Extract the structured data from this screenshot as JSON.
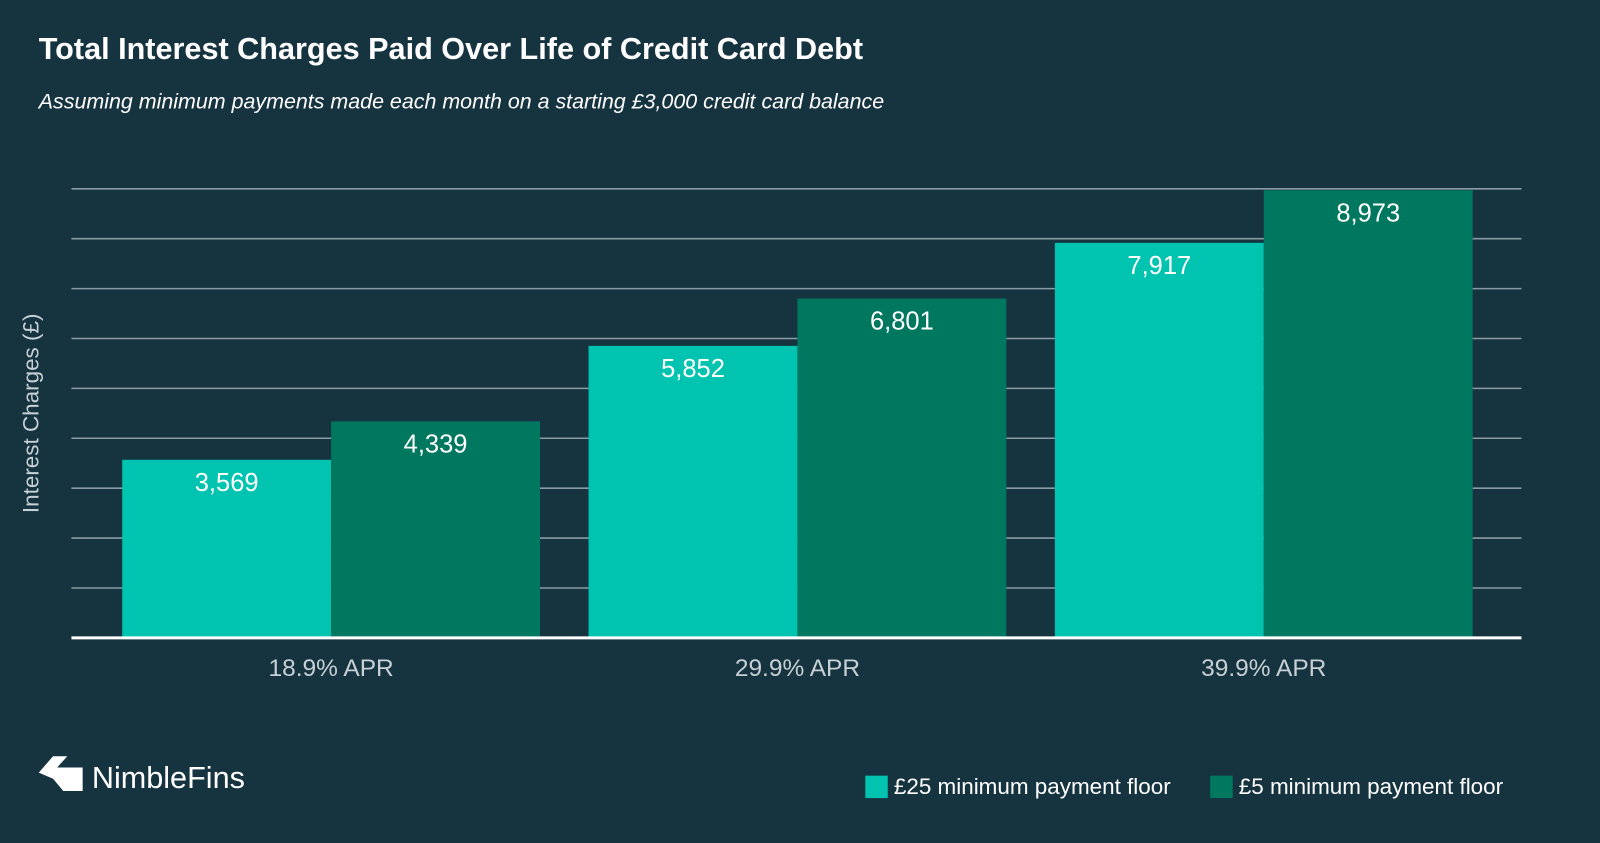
{
  "chart_data": {
    "type": "bar",
    "title": "Total Interest Charges Paid Over Life of Credit Card Debt",
    "subtitle": "Assuming minimum payments made each month on a starting £3,000 credit card balance",
    "y_label": "Interest Charges (£)",
    "categories": [
      "18.9% APR",
      "29.9% APR",
      "39.9% APR"
    ],
    "series": [
      {
        "name": "£25 minimum payment floor",
        "color": "#00c4b0",
        "values": [
          3569,
          5852,
          7917
        ],
        "value_labels": [
          "3,569",
          "5,852",
          "7,917"
        ]
      },
      {
        "name": "£5 minimum payment floor",
        "color": "#007860",
        "values": [
          4339,
          6801,
          8973
        ],
        "value_labels": [
          "4,339",
          "6,801",
          "8,973"
        ]
      }
    ],
    "ylim": [
      0,
      9000
    ],
    "yticks": [
      0,
      1000,
      2000,
      3000,
      4000,
      5000,
      6000,
      7000,
      8000,
      9000
    ],
    "grid": true,
    "legend": "bottom-right"
  },
  "brand": "NimbleFins"
}
